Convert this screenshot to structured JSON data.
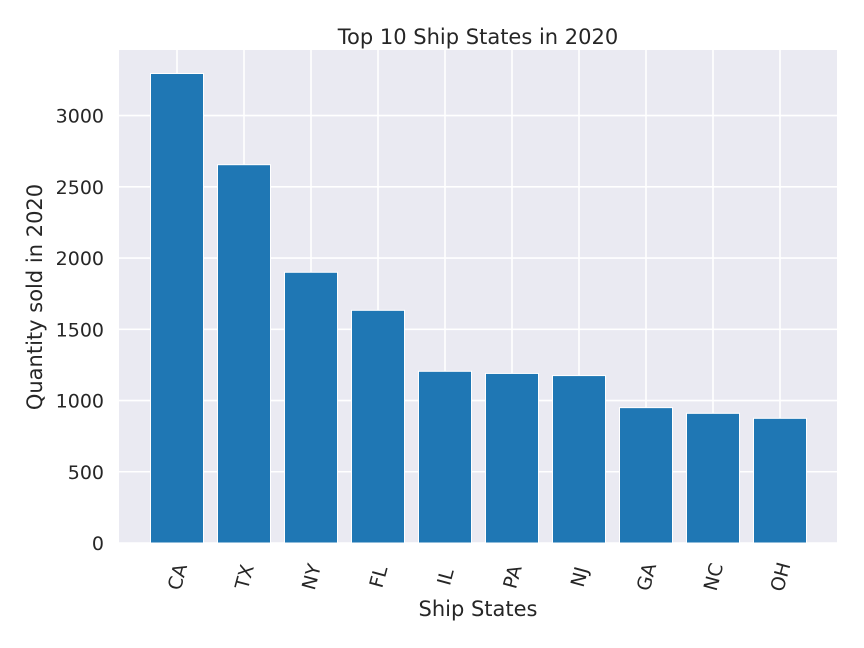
{
  "chart_data": {
    "type": "bar",
    "title": "Top 10 Ship States in 2020",
    "xlabel": "Ship States",
    "ylabel": "Quantity sold in 2020",
    "categories": [
      "CA",
      "TX",
      "NY",
      "FL",
      "IL",
      "PA",
      "NJ",
      "GA",
      "NC",
      "OH"
    ],
    "values": [
      3295,
      2655,
      1900,
      1633,
      1205,
      1190,
      1175,
      950,
      910,
      875
    ],
    "ylim": [
      0,
      3460
    ],
    "yticks": [
      0,
      500,
      1000,
      1500,
      2000,
      2500,
      3000
    ],
    "grid": true,
    "colors": {
      "bar": "#1f77b4",
      "plot_background": "#eaeaf2",
      "grid": "#ffffff",
      "text": "#262626"
    }
  }
}
